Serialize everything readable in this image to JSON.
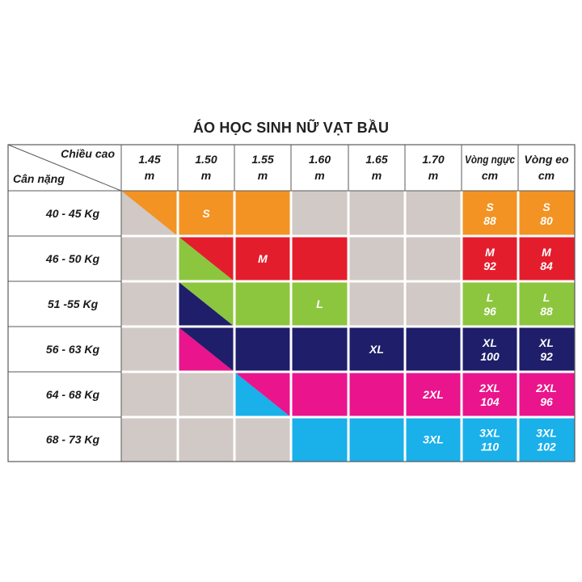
{
  "title": "ÁO HỌC SINH NỮ VẠT BẦU",
  "corner": {
    "top": "Chiều cao",
    "bottom": "Cân nặng"
  },
  "height_headers": [
    [
      "1.45",
      "m"
    ],
    [
      "1.50",
      "m"
    ],
    [
      "1.55",
      "m"
    ],
    [
      "1.60",
      "m"
    ],
    [
      "1.65",
      "m"
    ],
    [
      "1.70",
      "m"
    ]
  ],
  "measure_headers": [
    [
      "Vòng ngực",
      "cm"
    ],
    [
      "Vòng eo",
      "cm"
    ]
  ],
  "colors": {
    "empty": "#d0c9c5",
    "S": "#f39323",
    "M": "#e41d2d",
    "L": "#8cc63e",
    "XL": "#1e1e6a",
    "2XL": "#ea148c",
    "3XL": "#1ab0ea",
    "line": "#5a5a5a"
  },
  "chart_data": {
    "type": "table",
    "columns": [
      "1.45 m",
      "1.50 m",
      "1.55 m",
      "1.60 m",
      "1.65 m",
      "1.70 m"
    ],
    "rows": [
      {
        "weight": "40 - 45 Kg",
        "size": "S",
        "label": "S",
        "cells": [
          "S",
          "S",
          "S",
          "",
          "",
          ""
        ],
        "diag_col": 0,
        "diag_lower": "",
        "bust": [
          "S",
          "88"
        ],
        "waist": [
          "S",
          "80"
        ]
      },
      {
        "weight": "46 - 50 Kg",
        "size": "M",
        "label": "M",
        "cells": [
          "",
          "L",
          "M",
          "M",
          "",
          ""
        ],
        "diag_col": 1,
        "diag_lower": "L",
        "bust": [
          "M",
          "92"
        ],
        "waist": [
          "M",
          "84"
        ]
      },
      {
        "weight": "51 -55 Kg",
        "size": "L",
        "label": "L",
        "cells": [
          "",
          "XL",
          "L",
          "L",
          "",
          ""
        ],
        "diag_col": 1,
        "diag_lower": "XL",
        "bust": [
          "L",
          "96"
        ],
        "waist": [
          "L",
          "88"
        ]
      },
      {
        "weight": "56 - 63 Kg",
        "size": "XL",
        "label": "XL",
        "cells": [
          "",
          "2XL",
          "XL",
          "XL",
          "XL",
          "XL"
        ],
        "diag_col": 1,
        "diag_lower": "2XL",
        "bust": [
          "XL",
          "100"
        ],
        "waist": [
          "XL",
          "92"
        ]
      },
      {
        "weight": "64 - 68 Kg",
        "size": "2XL",
        "label": "2XL",
        "cells": [
          "",
          "",
          "3XL",
          "2XL",
          "2XL",
          "2XL"
        ],
        "diag_col": 2,
        "diag_lower": "3XL",
        "bust": [
          "2XL",
          "104"
        ],
        "waist": [
          "2XL",
          "96"
        ]
      },
      {
        "weight": "68 - 73 Kg",
        "size": "3XL",
        "label": "3XL",
        "cells": [
          "",
          "",
          "",
          "3XL",
          "3XL",
          "3XL"
        ],
        "diag_col": -1,
        "diag_lower": "",
        "bust": [
          "3XL",
          "110"
        ],
        "waist": [
          "3XL",
          "102"
        ]
      }
    ],
    "size_label_positions": [
      {
        "row": 0,
        "col": 1,
        "text": "S"
      },
      {
        "row": 1,
        "col": 2,
        "text": "M"
      },
      {
        "row": 2,
        "col": 3,
        "text": "L"
      },
      {
        "row": 3,
        "col": 4,
        "text": "XL"
      },
      {
        "row": 4,
        "col": 5,
        "text": "2XL"
      },
      {
        "row": 5,
        "col": 5,
        "text": "3XL"
      }
    ]
  }
}
